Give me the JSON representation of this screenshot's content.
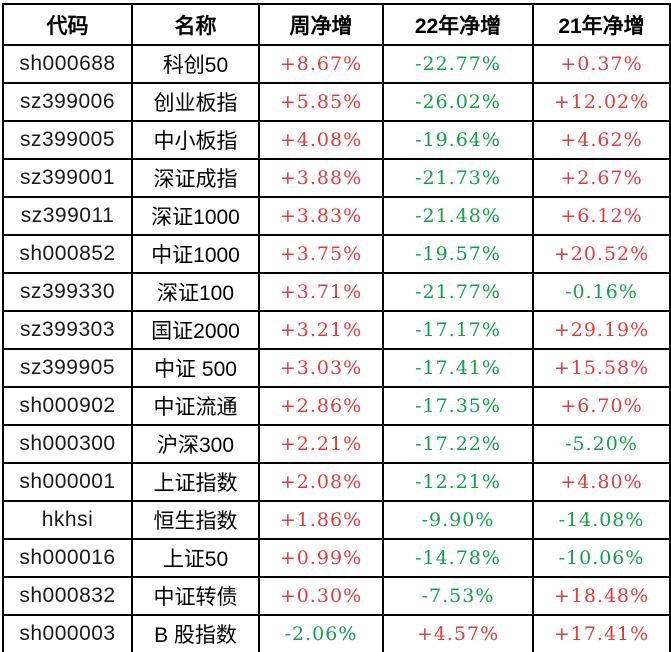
{
  "chart_data": {
    "type": "table",
    "title": "",
    "columns": [
      {
        "key": "code",
        "label": "代码"
      },
      {
        "key": "name",
        "label": "名称"
      },
      {
        "key": "week",
        "label": "周净增"
      },
      {
        "key": "y22",
        "label": "22年净增"
      },
      {
        "key": "y21",
        "label": "21年净增"
      }
    ],
    "rows": [
      {
        "code": "sh000688",
        "name": "科创50",
        "week": "+8.67%",
        "y22": "-22.77%",
        "y21": "+0.37%"
      },
      {
        "code": "sz399006",
        "name": "创业板指",
        "week": "+5.85%",
        "y22": "-26.02%",
        "y21": "+12.02%"
      },
      {
        "code": "sz399005",
        "name": "中小板指",
        "week": "+4.08%",
        "y22": "-19.64%",
        "y21": "+4.62%"
      },
      {
        "code": "sz399001",
        "name": "深证成指",
        "week": "+3.88%",
        "y22": "-21.73%",
        "y21": "+2.67%"
      },
      {
        "code": "sz399011",
        "name": "深证1000",
        "week": "+3.83%",
        "y22": "-21.48%",
        "y21": "+6.12%"
      },
      {
        "code": "sh000852",
        "name": "中证1000",
        "week": "+3.75%",
        "y22": "-19.57%",
        "y21": "+20.52%"
      },
      {
        "code": "sz399330",
        "name": "深证100",
        "week": "+3.71%",
        "y22": "-21.77%",
        "y21": "-0.16%"
      },
      {
        "code": "sz399303",
        "name": "国证2000",
        "week": "+3.21%",
        "y22": "-17.17%",
        "y21": "+29.19%"
      },
      {
        "code": "sz399905",
        "name": "中证 500",
        "week": "+3.03%",
        "y22": "-17.41%",
        "y21": "+15.58%"
      },
      {
        "code": "sh000902",
        "name": "中证流通",
        "week": "+2.86%",
        "y22": "-17.35%",
        "y21": "+6.70%"
      },
      {
        "code": "sh000300",
        "name": "沪深300",
        "week": "+2.21%",
        "y22": "-17.22%",
        "y21": "-5.20%"
      },
      {
        "code": "sh000001",
        "name": "上证指数",
        "week": "+2.08%",
        "y22": "-12.21%",
        "y21": "+4.80%"
      },
      {
        "code": "hkhsi",
        "name": "恒生指数",
        "week": "+1.86%",
        "y22": "-9.90%",
        "y21": "-14.08%"
      },
      {
        "code": "sh000016",
        "name": "上证50",
        "week": "+0.99%",
        "y22": "-14.78%",
        "y21": "-10.06%"
      },
      {
        "code": "sh000832",
        "name": "中证转债",
        "week": "+0.30%",
        "y22": "-7.53%",
        "y21": "+18.48%"
      },
      {
        "code": "sh000003",
        "name": "B 股指数",
        "week": "-2.06%",
        "y22": "+4.57%",
        "y21": "+17.41%"
      }
    ],
    "colors": {
      "positive": "#e23b3b",
      "negative": "#14a04b",
      "grid": "#000000",
      "background": "#ffffff",
      "header_text": "#000000"
    },
    "layout": {
      "grid": "on",
      "positive_color_convention": "red = gain, green = loss"
    }
  }
}
